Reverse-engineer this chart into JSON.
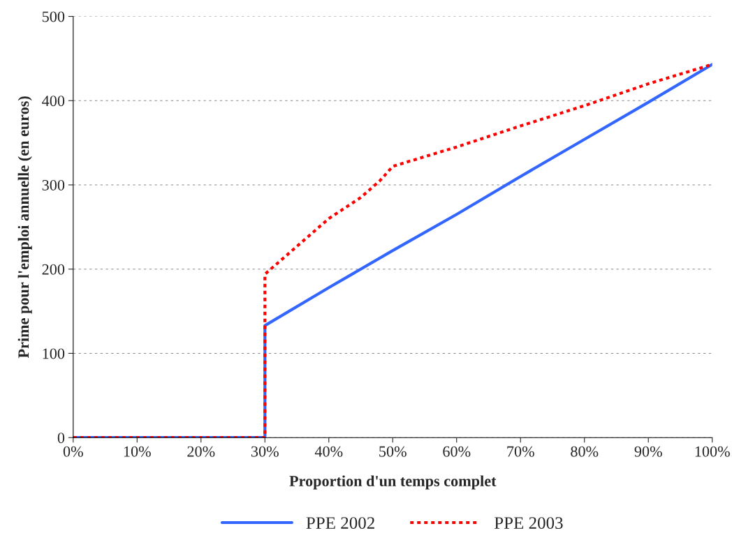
{
  "chart_data": {
    "type": "line",
    "xlabel": "Proportion d'un temps complet",
    "ylabel": "Prime pour l'emploi annuelle (en euros)",
    "xlim": [
      0,
      100
    ],
    "xticks": [
      {
        "value": 0,
        "label": "0%"
      },
      {
        "value": 10,
        "label": "10%"
      },
      {
        "value": 20,
        "label": "20%"
      },
      {
        "value": 30,
        "label": "30%"
      },
      {
        "value": 40,
        "label": "40%"
      },
      {
        "value": 50,
        "label": "50%"
      },
      {
        "value": 60,
        "label": "60%"
      },
      {
        "value": 70,
        "label": "70%"
      },
      {
        "value": 80,
        "label": "80%"
      },
      {
        "value": 90,
        "label": "90%"
      },
      {
        "value": 100,
        "label": "100%"
      }
    ],
    "ylim": [
      0,
      500
    ],
    "yticks": [
      0,
      100,
      200,
      300,
      400,
      500
    ],
    "grid": "y",
    "legend": "bottom",
    "series": [
      {
        "name": "PPE 2002",
        "color": "#3366ff",
        "line_style": "solid",
        "x": [
          0,
          30,
          30,
          40,
          50,
          60,
          70,
          80,
          90,
          100
        ],
        "values": [
          0,
          0,
          133,
          178,
          222,
          265,
          310,
          354,
          398,
          443
        ]
      },
      {
        "name": "PPE 2003",
        "color": "#ff0000",
        "line_style": "dotted",
        "x": [
          0,
          30,
          30,
          40,
          45,
          48,
          50,
          60,
          70,
          80,
          90,
          100
        ],
        "values": [
          0,
          0,
          194,
          260,
          285,
          305,
          322,
          345,
          370,
          394,
          420,
          443
        ]
      }
    ]
  }
}
